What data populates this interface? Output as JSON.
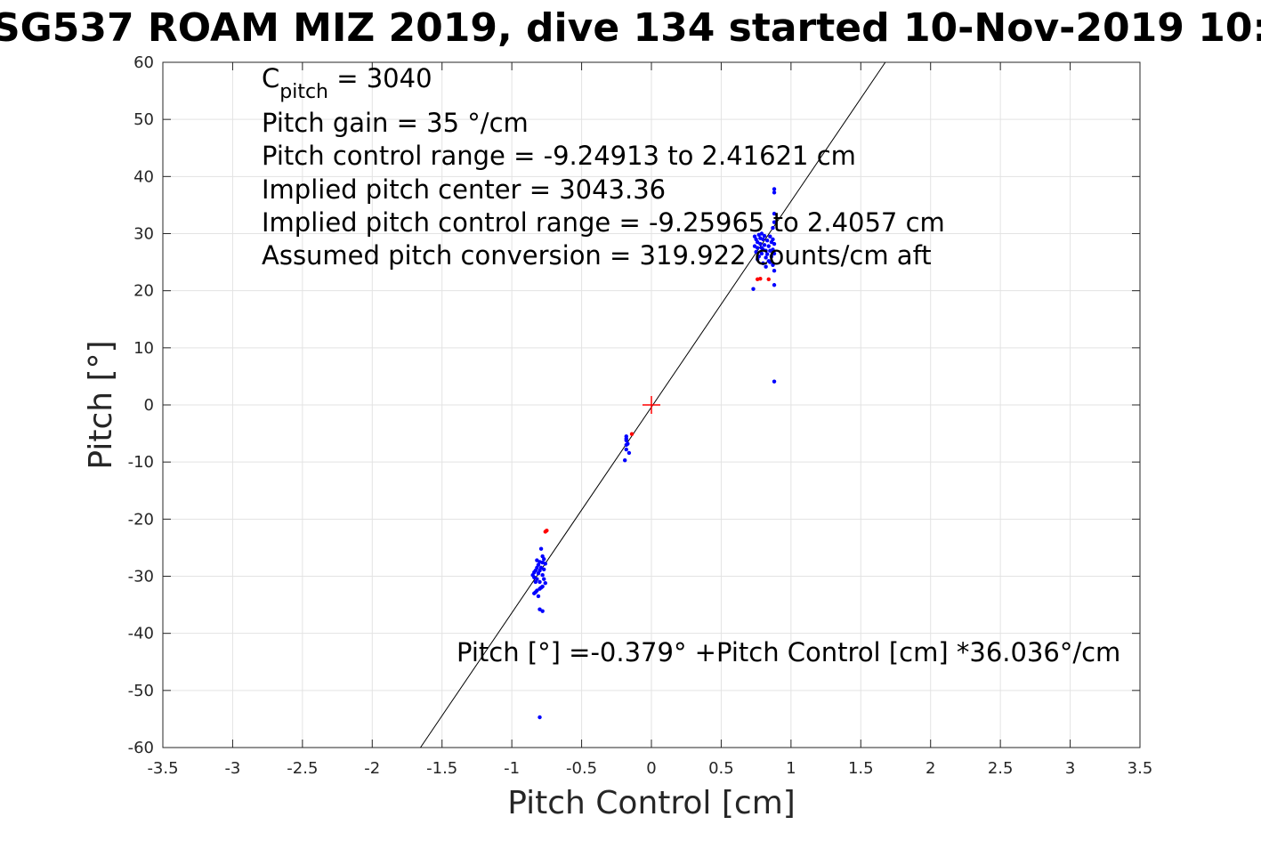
{
  "chart_data": {
    "type": "scatter",
    "title": "SG537 ROAM MIZ 2019, dive 134 started 10-Nov-2019 10:",
    "xlabel": "Pitch Control [cm]",
    "ylabel": "Pitch [°]",
    "xlim": [
      -3.5,
      3.5
    ],
    "ylim": [
      -60,
      60
    ],
    "xticks": [
      -3.5,
      -3,
      -2.5,
      -2,
      -1.5,
      -1,
      -0.5,
      0,
      0.5,
      1,
      1.5,
      2,
      2.5,
      3,
      3.5
    ],
    "xtick_labels": [
      "-3.5",
      "-3",
      "-2.5",
      "-2",
      "-1.5",
      "-1",
      "-0.5",
      "0",
      "0.5",
      "1",
      "1.5",
      "2",
      "2.5",
      "3",
      "3.5"
    ],
    "yticks": [
      -60,
      -50,
      -40,
      -30,
      -20,
      -10,
      0,
      10,
      20,
      30,
      40,
      50,
      60
    ],
    "ytick_labels": [
      "-60",
      "-50",
      "-40",
      "-30",
      "-20",
      "-10",
      "0",
      "10",
      "20",
      "30",
      "40",
      "50",
      "60"
    ],
    "grid": true,
    "colors": {
      "used": "#0000ff",
      "excluded": "#ff0000",
      "fit": "#000000",
      "center": "#ff0000"
    },
    "fit_line": {
      "intercept": -0.379,
      "slope": 36.036
    },
    "center_marker": [
      0,
      0
    ],
    "series": [
      {
        "color": "#0000ff",
        "points": [
          [
            0.88,
            37.8
          ],
          [
            0.88,
            37.2
          ],
          [
            0.88,
            33.5
          ],
          [
            0.88,
            32.0
          ],
          [
            0.87,
            31.0
          ],
          [
            0.74,
            29.5
          ],
          [
            0.75,
            29.0
          ],
          [
            0.76,
            28.5
          ],
          [
            0.77,
            29.8
          ],
          [
            0.78,
            28.2
          ],
          [
            0.79,
            27.5
          ],
          [
            0.8,
            29.0
          ],
          [
            0.81,
            28.0
          ],
          [
            0.82,
            27.0
          ],
          [
            0.83,
            28.8
          ],
          [
            0.84,
            27.8
          ],
          [
            0.85,
            29.5
          ],
          [
            0.86,
            28.5
          ],
          [
            0.87,
            27.2
          ],
          [
            0.88,
            26.5
          ],
          [
            0.74,
            27.8
          ],
          [
            0.75,
            26.8
          ],
          [
            0.76,
            27.5
          ],
          [
            0.77,
            26.0
          ],
          [
            0.78,
            29.2
          ],
          [
            0.79,
            26.5
          ],
          [
            0.8,
            27.2
          ],
          [
            0.81,
            29.6
          ],
          [
            0.82,
            25.8
          ],
          [
            0.83,
            26.4
          ],
          [
            0.84,
            25.2
          ],
          [
            0.85,
            27.0
          ],
          [
            0.86,
            26.0
          ],
          [
            0.87,
            29.0
          ],
          [
            0.88,
            28.2
          ],
          [
            0.76,
            25.5
          ],
          [
            0.8,
            24.8
          ],
          [
            0.82,
            24.2
          ],
          [
            0.85,
            25.0
          ],
          [
            0.87,
            24.5
          ],
          [
            0.88,
            23.5
          ],
          [
            0.73,
            20.3
          ],
          [
            0.88,
            21.0
          ],
          [
            0.88,
            4.1
          ],
          [
            0.79,
            30.0
          ],
          [
            -0.18,
            -5.5
          ],
          [
            -0.18,
            -6.2
          ],
          [
            -0.18,
            -7.0
          ],
          [
            -0.18,
            -7.8
          ],
          [
            -0.17,
            -6.8
          ],
          [
            -0.19,
            -9.7
          ],
          [
            -0.16,
            -8.4
          ],
          [
            -0.18,
            -5.9
          ],
          [
            -0.79,
            -25.2
          ],
          [
            -0.78,
            -26.5
          ],
          [
            -0.77,
            -27.0
          ],
          [
            -0.76,
            -27.8
          ],
          [
            -0.8,
            -27.5
          ],
          [
            -0.81,
            -28.0
          ],
          [
            -0.82,
            -28.5
          ],
          [
            -0.83,
            -29.0
          ],
          [
            -0.84,
            -29.3
          ],
          [
            -0.85,
            -29.8
          ],
          [
            -0.84,
            -30.2
          ],
          [
            -0.83,
            -31.0
          ],
          [
            -0.82,
            -30.5
          ],
          [
            -0.81,
            -29.5
          ],
          [
            -0.8,
            -29.0
          ],
          [
            -0.79,
            -28.5
          ],
          [
            -0.78,
            -29.8
          ],
          [
            -0.77,
            -30.5
          ],
          [
            -0.76,
            -31.2
          ],
          [
            -0.78,
            -31.8
          ],
          [
            -0.8,
            -32.2
          ],
          [
            -0.82,
            -32.5
          ],
          [
            -0.84,
            -33.0
          ],
          [
            -0.83,
            -32.8
          ],
          [
            -0.81,
            -33.5
          ],
          [
            -0.79,
            -32.0
          ],
          [
            -0.77,
            -28.8
          ],
          [
            -0.8,
            -31.0
          ],
          [
            -0.82,
            -27.2
          ],
          [
            -0.78,
            -27.6
          ],
          [
            -0.8,
            -35.8
          ],
          [
            -0.78,
            -36.1
          ],
          [
            -0.8,
            -54.7
          ]
        ]
      },
      {
        "color": "#ff0000",
        "points": [
          [
            0.76,
            22.0
          ],
          [
            0.78,
            22.1
          ],
          [
            0.84,
            22.0
          ],
          [
            -0.76,
            -22.2
          ],
          [
            -0.75,
            -22.0
          ],
          [
            -0.14,
            -5.1
          ]
        ]
      }
    ],
    "annotations": {
      "c_pitch_main": "C",
      "c_pitch_sub": "pitch",
      "c_pitch_value": " = 3040",
      "pitch_gain": "Pitch gain = 35 °/cm",
      "control_range": "Pitch control range = -9.24913 to 2.41621 cm",
      "implied_center": "Implied pitch center = 3043.36",
      "implied_range": "Implied pitch control range = -9.25965 to 2.4057 cm",
      "conversion": "Assumed pitch conversion = 319.922 counts/cm aft",
      "fit_equation": "Pitch [°] =-0.379° +Pitch Control [cm] *36.036°/cm"
    }
  }
}
